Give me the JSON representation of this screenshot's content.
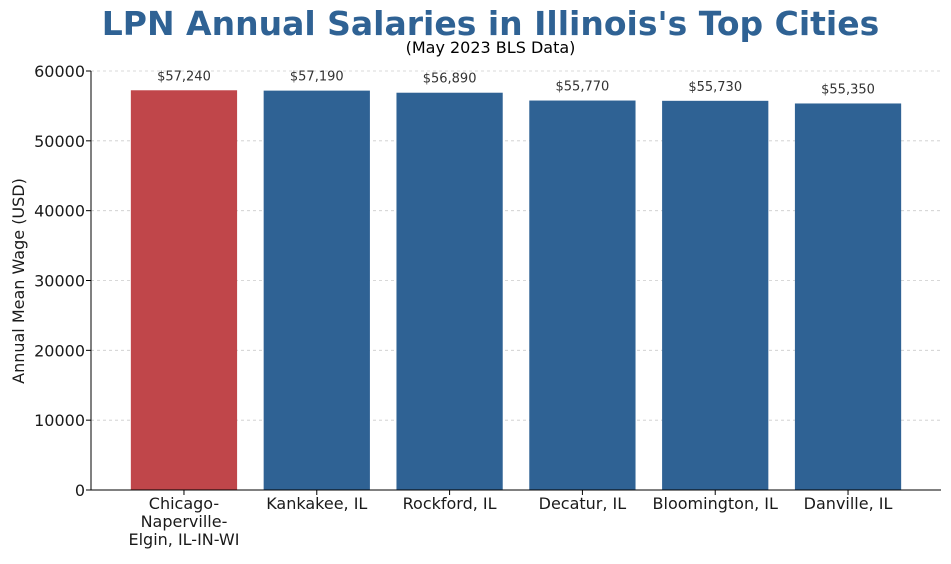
{
  "chart_data": {
    "type": "bar",
    "title": "LPN Annual Salaries in Illinois's Top Cities",
    "subtitle": "(May 2023 BLS Data)",
    "xlabel": "",
    "ylabel": "Annual Mean Wage (USD)",
    "ylim": [
      0,
      60000
    ],
    "yticks": [
      0,
      10000,
      20000,
      30000,
      40000,
      50000,
      60000
    ],
    "grid": true,
    "categories": [
      [
        "Chicago-",
        "Naperville-",
        "Elgin, IL-IN-WI"
      ],
      [
        "Kankakee, IL"
      ],
      [
        "Rockford, IL"
      ],
      [
        "Decatur, IL"
      ],
      [
        "Bloomington, IL"
      ],
      [
        "Danville, IL"
      ]
    ],
    "values": [
      57240,
      57190,
      56890,
      55770,
      55730,
      55350
    ],
    "value_labels": [
      "$57,240",
      "$57,190",
      "$56,890",
      "$55,770",
      "$55,730",
      "$55,350"
    ],
    "colors": [
      "#c0464a",
      "#2f6294",
      "#2f6294",
      "#2f6294",
      "#2f6294",
      "#2f6294"
    ]
  }
}
